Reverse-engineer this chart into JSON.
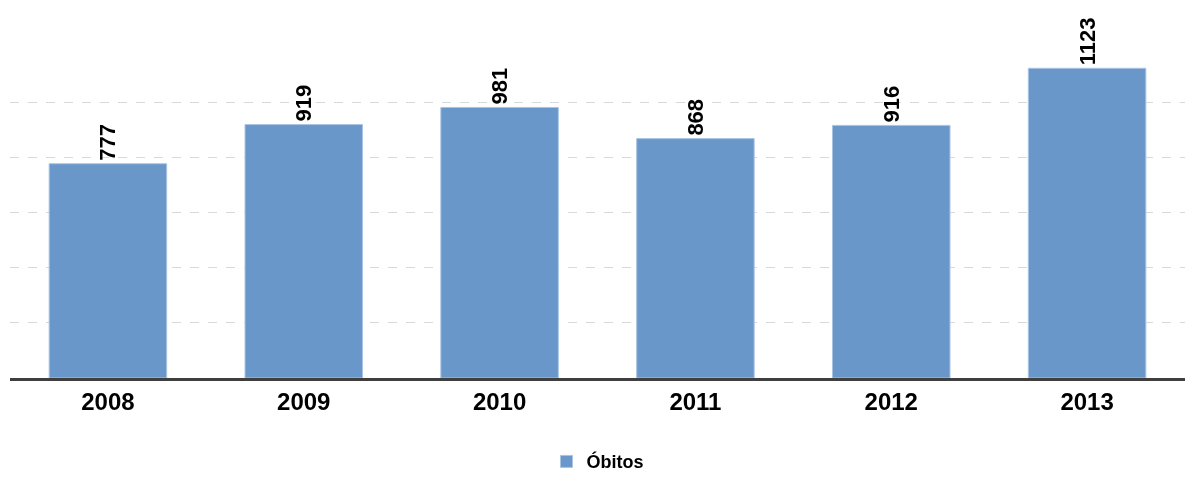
{
  "chart_data": {
    "type": "bar",
    "categories": [
      "2008",
      "2009",
      "2010",
      "2011",
      "2012",
      "2013"
    ],
    "series": [
      {
        "name": "Óbitos",
        "color": "#6a97c9",
        "values": [
          777,
          919,
          981,
          868,
          916,
          1123
        ]
      }
    ],
    "data_labels": true,
    "yticks": [
      {
        "value": 200,
        "label": null
      },
      {
        "value": 400,
        "label": null
      },
      {
        "value": 600,
        "label": null
      },
      {
        "value": 800,
        "label": null
      },
      {
        "value": 1000,
        "label": null
      }
    ],
    "tick_labels": "x",
    "grid": "y",
    "legend": "bottom"
  }
}
